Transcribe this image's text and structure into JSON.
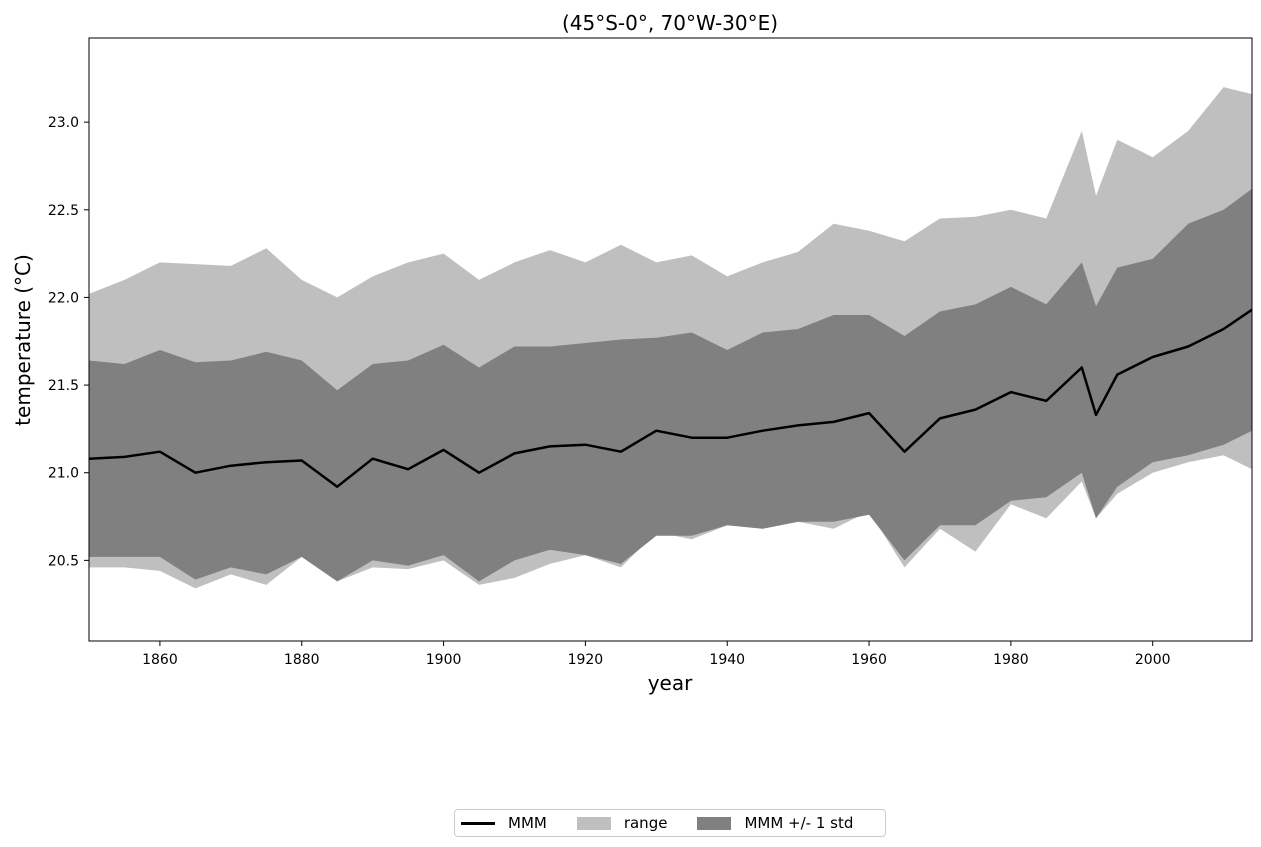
{
  "chart_data": {
    "type": "area",
    "title": "(45$^\\circ$S-0$^\\circ$, 70$^\\circ$W-30$^\\circ$E)",
    "title_display": "(45°S-0°, 70°W-30°E)",
    "xlabel": "year",
    "ylabel": "temperature (°C)",
    "xlim": [
      1850,
      2014
    ],
    "ylim": [
      20.04,
      23.48
    ],
    "xticks": [
      "1860",
      "1880",
      "1900",
      "1920",
      "1940",
      "1960",
      "1980",
      "2000"
    ],
    "yticks": [
      "20.5",
      "21.0",
      "21.5",
      "22.0",
      "22.5",
      "23.0"
    ],
    "grid": false,
    "legend_position": "bottom-center",
    "colors": {
      "mmm": "#000000",
      "range": "#bfbfbf",
      "std": "#808080"
    },
    "series": [
      {
        "name": "MMM",
        "kind": "line",
        "x": [
          1850,
          1855,
          1860,
          1865,
          1870,
          1875,
          1880,
          1885,
          1890,
          1895,
          1900,
          1905,
          1910,
          1915,
          1920,
          1925,
          1930,
          1935,
          1940,
          1945,
          1950,
          1955,
          1960,
          1965,
          1970,
          1975,
          1980,
          1985,
          1990,
          1992,
          1995,
          2000,
          2005,
          2010,
          2014
        ],
        "y": [
          21.08,
          21.09,
          21.12,
          21.0,
          21.04,
          21.06,
          21.07,
          20.92,
          21.08,
          21.02,
          21.13,
          21.0,
          21.11,
          21.15,
          21.16,
          21.12,
          21.24,
          21.2,
          21.2,
          21.24,
          21.27,
          21.29,
          21.34,
          21.12,
          21.31,
          21.36,
          21.46,
          21.41,
          21.6,
          21.33,
          21.56,
          21.66,
          21.72,
          21.82,
          21.93
        ]
      },
      {
        "name": "range",
        "kind": "band",
        "x": [
          1850,
          1855,
          1860,
          1865,
          1870,
          1875,
          1880,
          1885,
          1890,
          1895,
          1900,
          1905,
          1910,
          1915,
          1920,
          1925,
          1930,
          1935,
          1940,
          1945,
          1950,
          1955,
          1960,
          1965,
          1970,
          1975,
          1980,
          1985,
          1990,
          1992,
          1995,
          2000,
          2005,
          2010,
          2014
        ],
        "upper": [
          22.02,
          22.1,
          22.2,
          22.19,
          22.18,
          22.28,
          22.1,
          22.0,
          22.12,
          22.2,
          22.25,
          22.1,
          22.2,
          22.27,
          22.2,
          22.3,
          22.2,
          22.24,
          22.12,
          22.2,
          22.26,
          22.42,
          22.38,
          22.32,
          22.45,
          22.46,
          22.5,
          22.45,
          22.95,
          22.58,
          22.9,
          22.8,
          22.95,
          23.2,
          23.16
        ],
        "lower": [
          20.46,
          20.46,
          20.44,
          20.34,
          20.42,
          20.36,
          20.52,
          20.38,
          20.46,
          20.45,
          20.5,
          20.36,
          20.4,
          20.48,
          20.53,
          20.46,
          20.66,
          20.62,
          20.7,
          20.68,
          20.72,
          20.68,
          20.78,
          20.46,
          20.68,
          20.55,
          20.82,
          20.74,
          20.95,
          20.74,
          20.88,
          21.0,
          21.06,
          21.1,
          21.02
        ]
      },
      {
        "name": "MMM +/- 1 std",
        "kind": "band",
        "x": [
          1850,
          1855,
          1860,
          1865,
          1870,
          1875,
          1880,
          1885,
          1890,
          1895,
          1900,
          1905,
          1910,
          1915,
          1920,
          1925,
          1930,
          1935,
          1940,
          1945,
          1950,
          1955,
          1960,
          1965,
          1970,
          1975,
          1980,
          1985,
          1990,
          1992,
          1995,
          2000,
          2005,
          2010,
          2014
        ],
        "upper": [
          21.64,
          21.62,
          21.7,
          21.63,
          21.64,
          21.69,
          21.64,
          21.47,
          21.62,
          21.64,
          21.73,
          21.6,
          21.72,
          21.72,
          21.74,
          21.76,
          21.77,
          21.8,
          21.7,
          21.8,
          21.82,
          21.9,
          21.9,
          21.78,
          21.92,
          21.96,
          22.06,
          21.96,
          22.2,
          21.95,
          22.17,
          22.22,
          22.42,
          22.5,
          22.62
        ],
        "lower": [
          20.52,
          20.52,
          20.52,
          20.39,
          20.46,
          20.42,
          20.52,
          20.38,
          20.5,
          20.47,
          20.53,
          20.38,
          20.5,
          20.56,
          20.53,
          20.48,
          20.64,
          20.64,
          20.7,
          20.68,
          20.72,
          20.72,
          20.76,
          20.5,
          20.7,
          20.7,
          20.84,
          20.86,
          21.0,
          20.74,
          20.92,
          21.06,
          21.1,
          21.16,
          21.24
        ]
      }
    ]
  },
  "legend": {
    "mmm_label": "MMM",
    "range_label": "range",
    "std_label": "MMM +/- 1 std"
  }
}
